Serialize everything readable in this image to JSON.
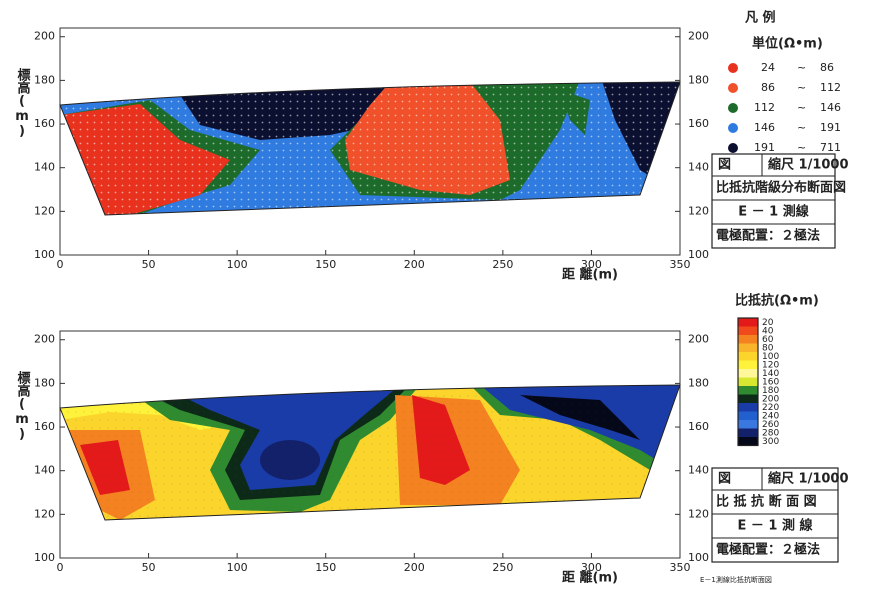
{
  "chart_data": [
    {
      "type": "section-classes",
      "y_label": "標高(m)",
      "x_label": "距 離(m)",
      "xlim": [
        0,
        350
      ],
      "xticks": [
        0,
        50,
        100,
        150,
        200,
        250,
        300,
        350
      ],
      "ylim": [
        100,
        204
      ],
      "yticks": [
        100,
        120,
        140,
        160,
        180,
        200
      ],
      "legend": {
        "title": "凡 例",
        "unit": "単位(Ω•m)",
        "separator": "~",
        "classes": [
          {
            "low": 24,
            "high": 86,
            "color": "#e8321e"
          },
          {
            "low": 86,
            "high": 112,
            "color": "#f0502a"
          },
          {
            "low": 112,
            "high": 146,
            "color": "#1d6b2a"
          },
          {
            "low": 146,
            "high": 191,
            "color": "#2f7be0"
          },
          {
            "low": 191,
            "high": 711,
            "color": "#0c1030"
          }
        ]
      },
      "info": {
        "mark": "図",
        "scale": "縮尺 1/1000",
        "title": "比抵抗階級分布断面図",
        "line": "E － 1 測線",
        "method": "電極配置：２極法"
      }
    },
    {
      "type": "section-contour",
      "y_label": "標高(m)",
      "x_label": "距 離(m)",
      "xlim": [
        0,
        350
      ],
      "xticks": [
        0,
        50,
        100,
        150,
        200,
        250,
        300,
        350
      ],
      "ylim": [
        100,
        204
      ],
      "yticks": [
        100,
        120,
        140,
        160,
        180,
        200
      ],
      "colorbar": {
        "title": "比抵抗(Ω•m)",
        "levels": [
          20,
          40,
          60,
          80,
          100,
          120,
          140,
          160,
          180,
          200,
          220,
          240,
          260,
          280,
          300
        ],
        "colors": [
          "#e41a1a",
          "#f04a1c",
          "#f58220",
          "#f8b42a",
          "#fbd52c",
          "#fff23a",
          "#fff89a",
          "#d8e830",
          "#2f8a30",
          "#0d2a18",
          "#1a3ca8",
          "#2260d0",
          "#3a78e0",
          "#13206a",
          "#050818"
        ]
      },
      "info": {
        "mark": "図",
        "scale": "縮尺 1/1000",
        "title": "比 抵 抗 断 面 図",
        "line": "E － 1 測 線",
        "method": "電極配置：２極法"
      },
      "caption": "E－1測線比抵抗断面図"
    }
  ]
}
